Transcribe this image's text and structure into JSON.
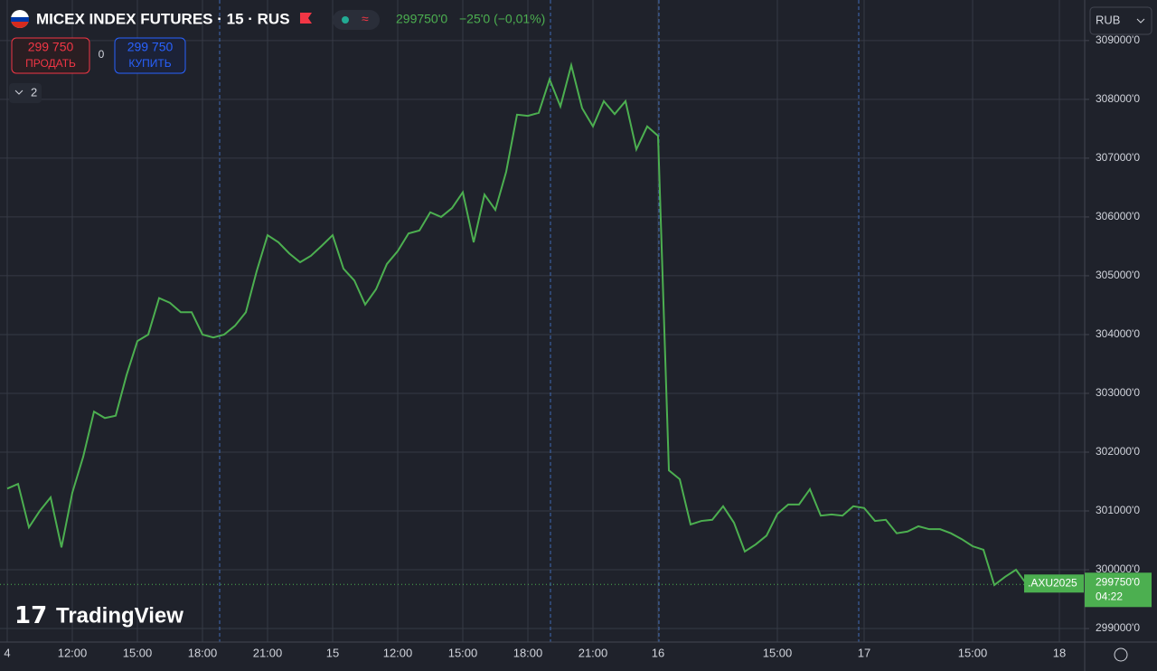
{
  "chart_data": {
    "type": "line",
    "title": "MICEX INDEX FUTURES · 15 · RUS",
    "header_price": "299750'0",
    "change": "−25'0 (−0,01%)",
    "categories": [
      "4",
      null,
      null,
      null,
      null,
      null,
      "12:00",
      null,
      null,
      null,
      null,
      null,
      "15:00",
      null,
      null,
      null,
      null,
      null,
      "18:00",
      null,
      null,
      null,
      null,
      null,
      "21:00",
      null,
      null,
      null,
      null,
      null,
      "15",
      null,
      null,
      null,
      null,
      null,
      "12:00",
      null,
      null,
      null,
      null,
      null,
      "15:00",
      null,
      null,
      null,
      null,
      null,
      "18:00",
      null,
      null,
      null,
      null,
      null,
      "21:00",
      null,
      null,
      null,
      null,
      null,
      "16",
      null,
      null,
      null,
      null,
      null,
      null,
      null,
      null,
      null,
      null,
      "15:00",
      null,
      null,
      null,
      null,
      null,
      null,
      null,
      "17",
      null,
      null,
      null,
      null,
      null,
      null,
      null,
      null,
      null,
      "15:00",
      null,
      null,
      null,
      null,
      null,
      null,
      null,
      "18"
    ],
    "series": [
      {
        "color": "#4caf50",
        "values": [
          301380,
          301460,
          300720,
          301000,
          301230,
          300380,
          301310,
          301920,
          302690,
          302580,
          302620,
          303310,
          303890,
          304000,
          304620,
          304540,
          304380,
          304380,
          304000,
          303950,
          304000,
          304150,
          304380,
          305080,
          305690,
          305570,
          305380,
          305230,
          305340,
          305510,
          305690,
          305120,
          304920,
          304510,
          304770,
          305200,
          305420,
          305720,
          305770,
          306080,
          306000,
          306150,
          306420,
          305570,
          306380,
          306120,
          306770,
          307740,
          307720,
          307770,
          308340,
          307880,
          308580,
          307850,
          307540,
          307970,
          307750,
          307970,
          307150,
          307540,
          307380,
          301690,
          301540,
          300770,
          300830,
          300850,
          301080,
          300800,
          300310,
          300430,
          300580,
          300950,
          301110,
          301110,
          301370,
          300920,
          300940,
          300920,
          301080,
          301050,
          300830,
          300850,
          300620,
          300650,
          300740,
          300690,
          300690,
          300620,
          300520,
          300400,
          300340,
          299740,
          299880,
          300000,
          299750,
          null,
          null,
          null
        ]
      }
    ],
    "last_price_label": "299750'0",
    "symbol_badge": ".AXU2025",
    "countdown": "04:22",
    "ylim": [
      298770,
      309690
    ],
    "yticks": [
      {
        "value": 299000,
        "label": "299000'0"
      },
      {
        "value": 300000,
        "label": "300000'0"
      },
      {
        "value": 301000,
        "label": "301000'0"
      },
      {
        "value": 302000,
        "label": "302000'0"
      },
      {
        "value": 303000,
        "label": "303000'0"
      },
      {
        "value": 304000,
        "label": "304000'0"
      },
      {
        "value": 305000,
        "label": "305000'0"
      },
      {
        "value": 306000,
        "label": "306000'0"
      },
      {
        "value": 307000,
        "label": "307000'0"
      },
      {
        "value": 308000,
        "label": "308000'0"
      },
      {
        "value": 309000,
        "label": "309000'0"
      }
    ],
    "grid": true
  },
  "ui": {
    "sell_price": "299 750",
    "sell_label": "ПРОДАТЬ",
    "spread": "0",
    "buy_price": "299 750",
    "buy_label": "КУПИТЬ",
    "indicators": "2",
    "currency": "RUB",
    "brand": "TradingView"
  }
}
